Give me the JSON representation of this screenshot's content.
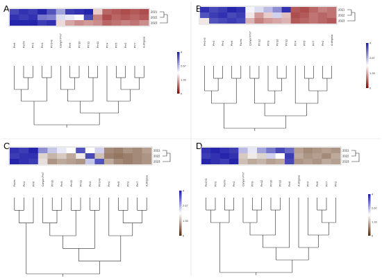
{
  "panels": [
    {
      "id": "A",
      "label": "A",
      "years": [
        "2021",
        "2022",
        "2023"
      ],
      "taxa": [
        "Pm6",
        "Fuchs",
        "Pm1",
        "Pm3",
        "Pm3+8",
        "Canyon Pm7",
        "Pm9",
        "Pm10",
        "Pm11",
        "Pm12",
        "Pm4",
        "Pm5",
        "Pm2",
        "Pm7",
        "A.strigosa"
      ],
      "heatmap": [
        [
          3.6,
          3.8,
          3.7,
          3.9,
          3.5,
          2.8,
          3.7,
          3.8,
          3.9,
          1.6,
          0.8,
          0.7,
          0.6,
          0.7,
          0.6
        ],
        [
          3.8,
          3.7,
          3.8,
          3.2,
          3.1,
          2.3,
          2.2,
          2.0,
          3.6,
          1.0,
          0.6,
          0.8,
          0.7,
          0.8,
          0.7
        ],
        [
          3.9,
          3.9,
          3.9,
          3.7,
          3.8,
          1.7,
          1.3,
          1.1,
          1.2,
          1.1,
          0.8,
          0.9,
          1.0,
          0.9,
          1.1
        ]
      ],
      "colorbar": {
        "style": "blue-red",
        "ticks": [
          "4",
          "2.67",
          "1.33",
          "0"
        ]
      }
    },
    {
      "id": "B",
      "label": "B",
      "years": [
        "2021",
        "2022",
        "2023"
      ],
      "taxa": [
        "Pm3+8",
        "Pm3",
        "Pm1",
        "Pm6",
        "Fuchs",
        "Canyon Pm7",
        "Pm12",
        "Pm9",
        "Pm10",
        "Pm11",
        "Pm4",
        "Pm5",
        "Pm7",
        "Pm2",
        "A.strigosa"
      ],
      "heatmap": [
        [
          3.8,
          3.6,
          3.7,
          3.9,
          3.8,
          2.1,
          2.3,
          2.6,
          3.0,
          3.8,
          0.7,
          0.6,
          0.8,
          1.0,
          0.9
        ],
        [
          3.5,
          3.7,
          3.8,
          3.6,
          3.7,
          1.8,
          1.2,
          1.6,
          2.4,
          1.5,
          0.6,
          0.7,
          0.9,
          0.8,
          0.9
        ],
        [
          1.8,
          3.5,
          3.6,
          3.7,
          3.6,
          1.4,
          1.0,
          1.2,
          1.3,
          1.4,
          0.7,
          0.8,
          0.9,
          0.8,
          0.7
        ]
      ],
      "colorbar": {
        "style": "blue-red",
        "ticks": [
          "4",
          "2.67",
          "1.33",
          "0"
        ]
      }
    },
    {
      "id": "C",
      "label": "C",
      "years": [
        "2021",
        "2022",
        "2023"
      ],
      "taxa": [
        "Fuchs",
        "Pm1",
        "Pm6",
        "Canyon Pm7",
        "Pm10",
        "Pm9",
        "Pm12",
        "Pm11",
        "Pm3",
        "Pm3+8",
        "Pm4",
        "Pm5",
        "Pm2",
        "Pm7",
        "A.strigosa"
      ],
      "heatmap": [
        [
          3.8,
          3.7,
          3.9,
          3.0,
          2.5,
          2.2,
          2.0,
          3.5,
          2.0,
          2.4,
          0.9,
          0.8,
          1.0,
          0.9,
          1.1
        ],
        [
          3.7,
          3.8,
          3.8,
          1.6,
          1.3,
          1.5,
          1.2,
          1.8,
          3.6,
          1.4,
          0.8,
          0.7,
          0.8,
          0.9,
          1.0
        ],
        [
          3.9,
          3.8,
          3.7,
          1.7,
          1.0,
          1.2,
          1.1,
          1.0,
          2.5,
          3.5,
          1.2,
          0.9,
          0.8,
          0.9,
          1.0
        ]
      ],
      "colorbar": {
        "style": "blue-brown",
        "ticks": [
          "4",
          "2.67",
          "1.33",
          "0"
        ]
      }
    },
    {
      "id": "D",
      "label": "D",
      "years": [
        "2021",
        "2022",
        "2023"
      ],
      "taxa": [
        "Pm3+8",
        "Pm3",
        "Fuchs",
        "Pm1",
        "Canyon Pm7",
        "Pm9",
        "Pm12",
        "Pm10",
        "Pm11",
        "Pm6",
        "A.strigosa",
        "Pm4",
        "Pm5",
        "Pm7",
        "Pm2"
      ],
      "heatmap": [
        [
          3.8,
          3.9,
          3.8,
          3.7,
          2.6,
          2.2,
          2.8,
          3.2,
          3.6,
          3.3,
          1.1,
          0.9,
          1.0,
          1.1,
          1.0
        ],
        [
          3.7,
          3.8,
          3.9,
          3.8,
          1.5,
          1.8,
          1.6,
          2.4,
          2.0,
          3.7,
          1.2,
          1.0,
          1.1,
          0.9,
          1.2
        ],
        [
          3.9,
          3.8,
          3.7,
          3.9,
          1.4,
          1.2,
          1.3,
          1.1,
          1.2,
          3.6,
          1.0,
          1.1,
          1.0,
          1.2,
          1.1
        ]
      ],
      "colorbar": {
        "style": "blue-brown",
        "ticks": [
          "4",
          "2.67",
          "1.33",
          "0"
        ]
      }
    }
  ],
  "colors": {
    "blue_high": "#1a1aa8",
    "mid": "#ffffff",
    "red_low": "#8b0000",
    "brown_low": "#5a2a0a",
    "panel_border": "#c8c8c8"
  }
}
